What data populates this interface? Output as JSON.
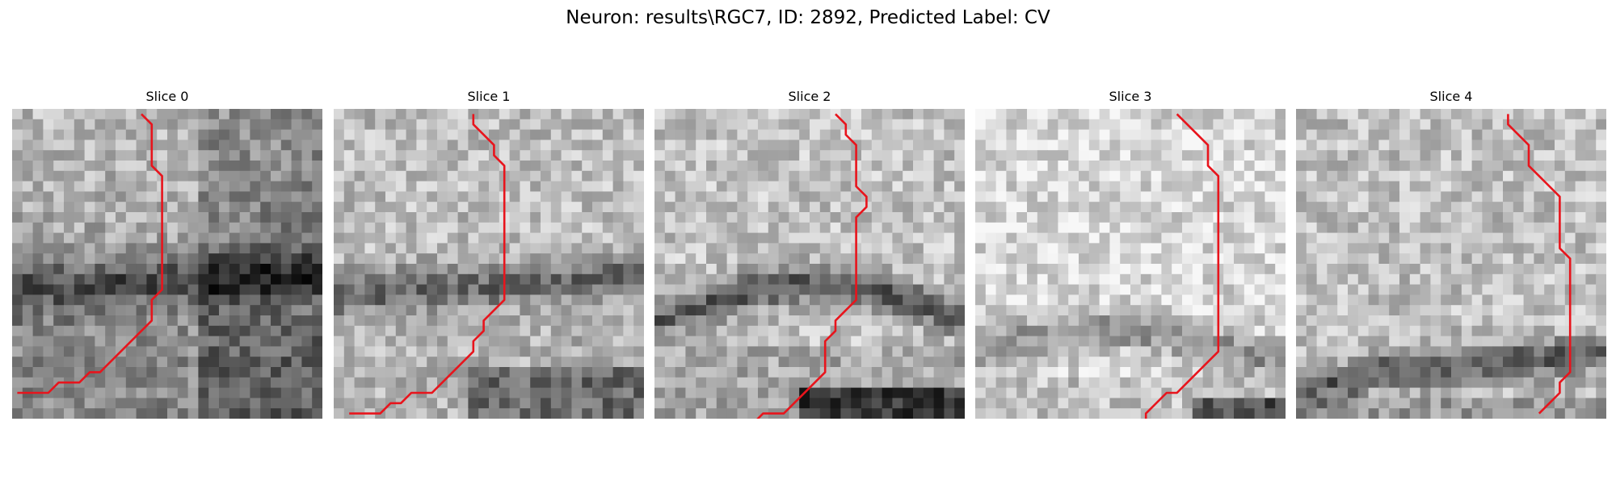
{
  "figure": {
    "title": "Neuron: results\\RGC7, ID: 2892, Predicted Label: CV"
  },
  "trace_color": "#e8141c",
  "panels": [
    {
      "title": "Slice 0",
      "image_description": "grayscale microscopy patch, bright textured region upper-left, dark horizontal membrane band across middle, darker mottled texture lower right",
      "trace": [
        [
          12,
          0
        ],
        [
          13,
          1
        ],
        [
          13,
          5
        ],
        [
          14,
          6
        ],
        [
          14,
          17
        ],
        [
          13,
          18
        ],
        [
          13,
          20
        ],
        [
          12,
          21
        ],
        [
          10,
          23
        ],
        [
          8,
          25
        ],
        [
          7,
          25
        ],
        [
          6,
          26
        ],
        [
          4,
          26
        ],
        [
          3,
          27
        ],
        [
          0,
          27
        ]
      ]
    },
    {
      "title": "Slice 1",
      "image_description": "grayscale microscopy patch, bright textured upper region, dark horizontal membrane band near middle, dark region bottom right",
      "trace": [
        [
          13,
          0
        ],
        [
          13,
          1
        ],
        [
          15,
          3
        ],
        [
          15,
          4
        ],
        [
          16,
          5
        ],
        [
          16,
          18
        ],
        [
          14,
          20
        ],
        [
          14,
          21
        ],
        [
          13,
          22
        ],
        [
          13,
          23
        ],
        [
          9,
          27
        ],
        [
          7,
          27
        ],
        [
          6,
          28
        ],
        [
          5,
          28
        ],
        [
          4,
          29
        ],
        [
          1,
          29
        ]
      ]
    },
    {
      "title": "Slice 2",
      "image_description": "grayscale microscopy patch, bright rounded region top, curved dark membrane band below middle, very dark region bottom right",
      "trace": [
        [
          17,
          0
        ],
        [
          18,
          1
        ],
        [
          18,
          2
        ],
        [
          19,
          3
        ],
        [
          19,
          7
        ],
        [
          20,
          8
        ],
        [
          20,
          9
        ],
        [
          19,
          10
        ],
        [
          19,
          18
        ],
        [
          18,
          19
        ],
        [
          17,
          20
        ],
        [
          17,
          21
        ],
        [
          16,
          22
        ],
        [
          16,
          25
        ],
        [
          13,
          28
        ],
        [
          12,
          29
        ],
        [
          10,
          29
        ],
        [
          9,
          30
        ]
      ]
    },
    {
      "title": "Slice 3",
      "image_description": "grayscale microscopy patch, large bright rounded region, curved dark membrane band lower part, dark areas bottom right",
      "trace": [
        [
          19,
          0
        ],
        [
          22,
          3
        ],
        [
          22,
          5
        ],
        [
          23,
          6
        ],
        [
          23,
          23
        ],
        [
          22,
          24
        ],
        [
          20,
          26
        ],
        [
          19,
          27
        ],
        [
          18,
          27
        ],
        [
          16,
          29
        ],
        [
          16,
          30
        ]
      ]
    },
    {
      "title": "Slice 4",
      "image_description": "grayscale microscopy patch, bright textured region, dark membrane band lower part with very dark spot left, darker bottom",
      "trace": [
        [
          20,
          0
        ],
        [
          20,
          1
        ],
        [
          22,
          3
        ],
        [
          22,
          5
        ],
        [
          24,
          7
        ],
        [
          25,
          8
        ],
        [
          25,
          13
        ],
        [
          26,
          14
        ],
        [
          26,
          25
        ],
        [
          25,
          26
        ],
        [
          25,
          27
        ],
        [
          24,
          28
        ],
        [
          23,
          29
        ]
      ]
    }
  ]
}
